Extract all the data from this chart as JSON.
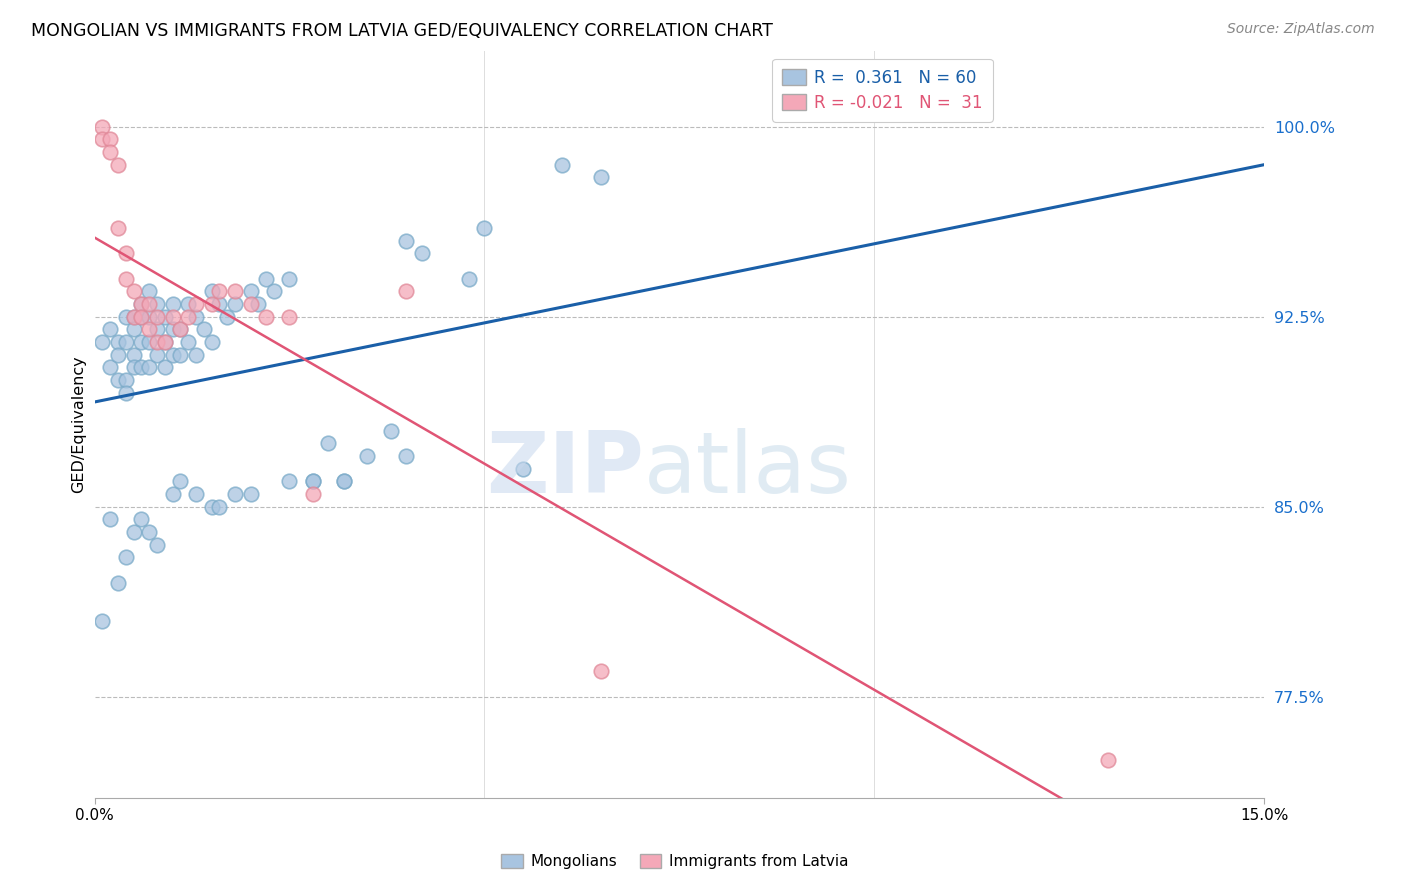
{
  "title": "MONGOLIAN VS IMMIGRANTS FROM LATVIA GED/EQUIVALENCY CORRELATION CHART",
  "source": "Source: ZipAtlas.com",
  "ylabel": "GED/Equivalency",
  "xmin": 0.0,
  "xmax": 0.15,
  "ymin": 73.5,
  "ymax": 103.0,
  "mongolian_R": 0.361,
  "mongolian_N": 60,
  "latvia_R": -0.021,
  "latvia_N": 31,
  "mongolian_color": "#a8c4e0",
  "mongolian_edge": "#7aaac8",
  "latvia_color": "#f4a8b8",
  "latvia_edge": "#e08898",
  "mongolian_line_color": "#1a5fa8",
  "latvia_line_color": "#e05575",
  "mongolian_x": [
    0.001,
    0.002,
    0.002,
    0.003,
    0.003,
    0.003,
    0.004,
    0.004,
    0.004,
    0.004,
    0.005,
    0.005,
    0.005,
    0.005,
    0.006,
    0.006,
    0.006,
    0.006,
    0.007,
    0.007,
    0.007,
    0.007,
    0.008,
    0.008,
    0.008,
    0.009,
    0.009,
    0.009,
    0.01,
    0.01,
    0.01,
    0.011,
    0.011,
    0.012,
    0.012,
    0.013,
    0.013,
    0.014,
    0.015,
    0.015,
    0.016,
    0.017,
    0.018,
    0.02,
    0.021,
    0.022,
    0.023,
    0.025,
    0.028,
    0.03,
    0.032,
    0.035,
    0.038,
    0.04,
    0.042,
    0.048,
    0.05,
    0.055,
    0.06,
    0.065
  ],
  "mongolian_y": [
    91.5,
    92.0,
    90.5,
    91.5,
    91.0,
    90.0,
    92.5,
    91.5,
    90.0,
    89.5,
    92.5,
    92.0,
    91.0,
    90.5,
    93.0,
    92.5,
    91.5,
    90.5,
    93.5,
    92.5,
    91.5,
    90.5,
    93.0,
    92.0,
    91.0,
    92.5,
    91.5,
    90.5,
    93.0,
    92.0,
    91.0,
    92.0,
    91.0,
    93.0,
    91.5,
    92.5,
    91.0,
    92.0,
    93.5,
    91.5,
    93.0,
    92.5,
    93.0,
    93.5,
    93.0,
    94.0,
    93.5,
    94.0,
    86.0,
    87.5,
    86.0,
    87.0,
    88.0,
    95.5,
    95.0,
    94.0,
    96.0,
    86.5,
    98.5,
    98.0
  ],
  "mongolian_low_x": [
    0.001,
    0.002,
    0.003,
    0.004,
    0.005,
    0.006,
    0.007,
    0.008,
    0.01,
    0.011,
    0.013,
    0.015,
    0.016,
    0.018,
    0.02,
    0.025,
    0.028,
    0.032,
    0.04
  ],
  "mongolian_low_y": [
    80.5,
    84.5,
    82.0,
    83.0,
    84.0,
    84.5,
    84.0,
    83.5,
    85.5,
    86.0,
    85.5,
    85.0,
    85.0,
    85.5,
    85.5,
    86.0,
    86.0,
    86.0,
    87.0
  ],
  "latvia_x": [
    0.001,
    0.001,
    0.002,
    0.002,
    0.003,
    0.003,
    0.004,
    0.004,
    0.005,
    0.005,
    0.006,
    0.006,
    0.007,
    0.007,
    0.008,
    0.008,
    0.009,
    0.01,
    0.011,
    0.012,
    0.013,
    0.015,
    0.016,
    0.018,
    0.02,
    0.022,
    0.025,
    0.028,
    0.04,
    0.065,
    0.13
  ],
  "latvia_y": [
    100.0,
    99.5,
    99.5,
    99.0,
    98.5,
    96.0,
    95.0,
    94.0,
    93.5,
    92.5,
    93.0,
    92.5,
    93.0,
    92.0,
    92.5,
    91.5,
    91.5,
    92.5,
    92.0,
    92.5,
    93.0,
    93.0,
    93.5,
    93.5,
    93.0,
    92.5,
    92.5,
    85.5,
    93.5,
    78.5,
    75.0
  ],
  "ytick_vals": [
    77.5,
    85.0,
    92.5,
    100.0
  ],
  "ytick_labels": [
    "77.5%",
    "85.0%",
    "92.5%",
    "100.0%"
  ]
}
